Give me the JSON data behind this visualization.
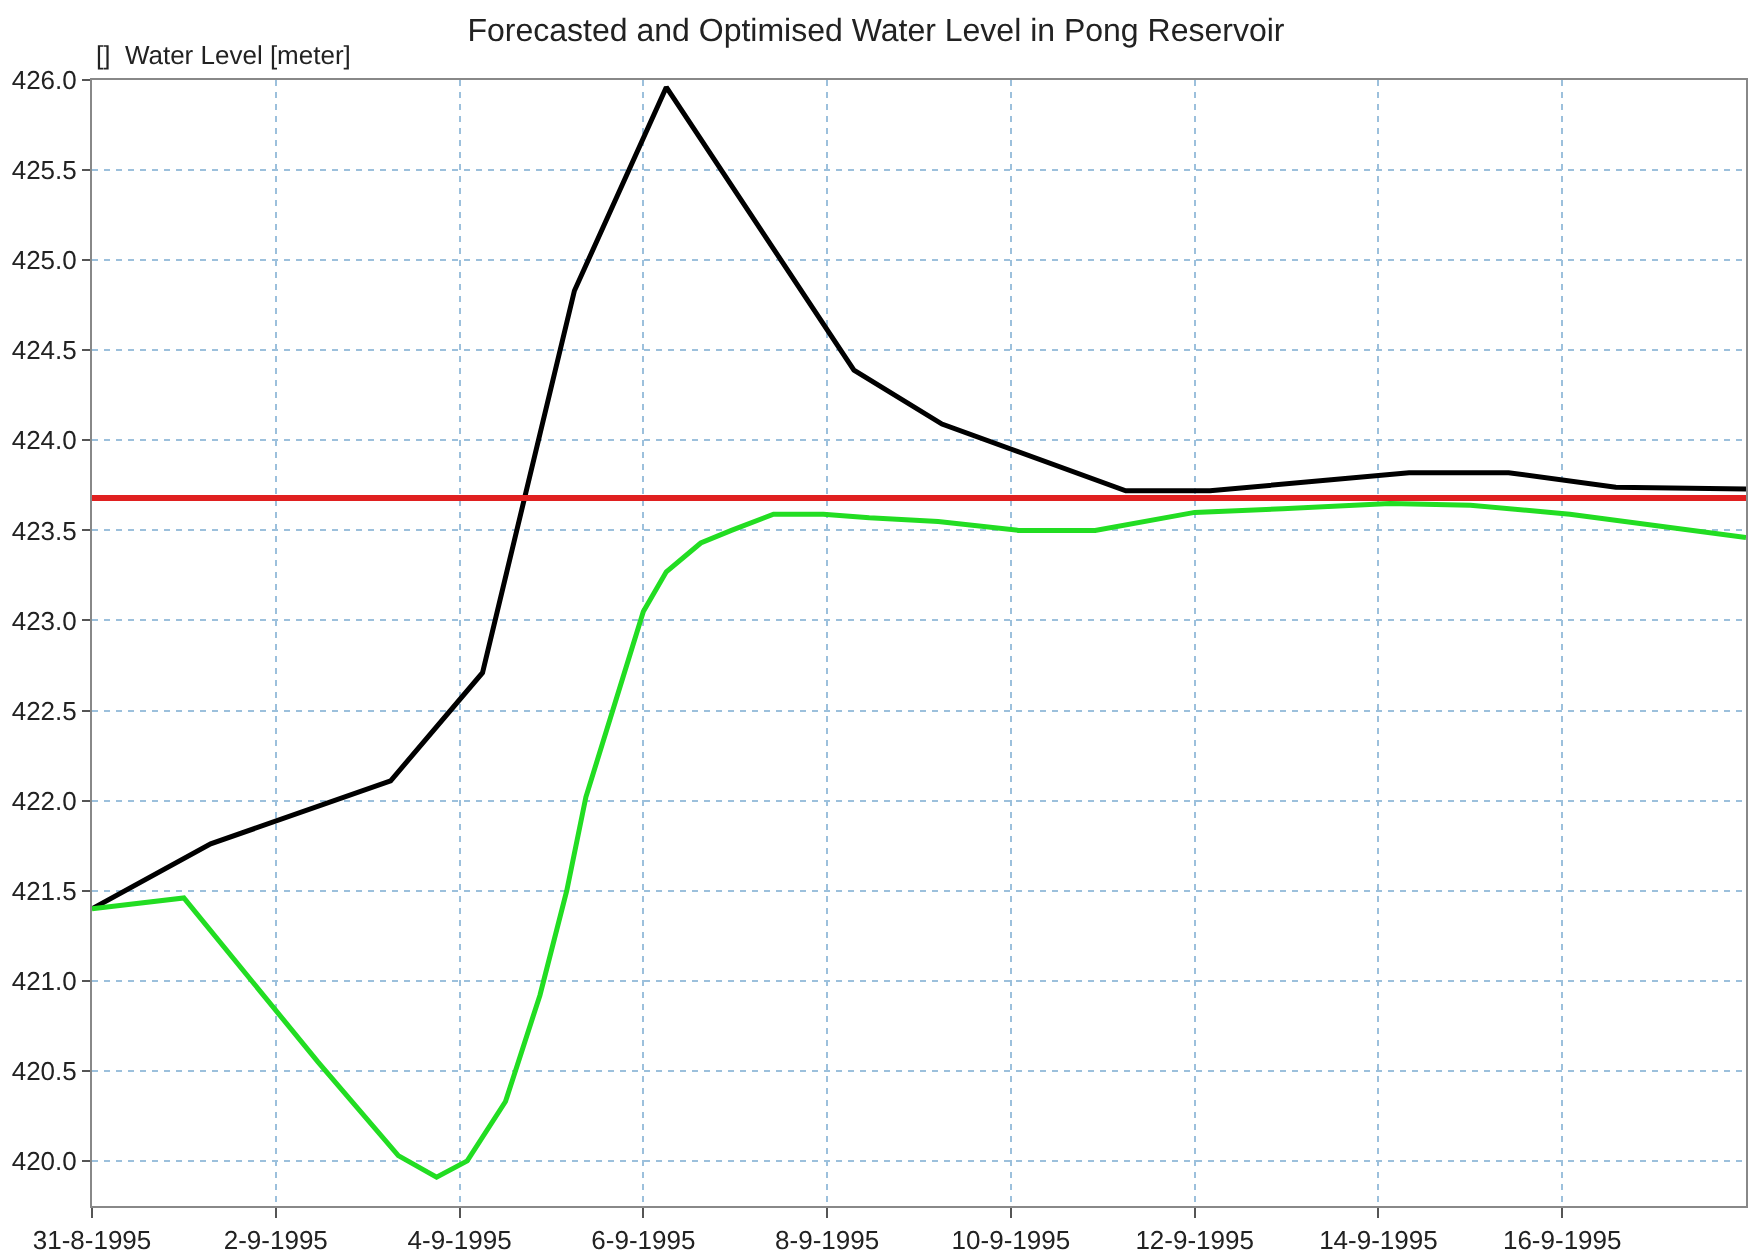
{
  "chart_data": {
    "type": "line",
    "title": "Forecasted and Optimised Water Level in Pong Reservoir",
    "ylabel": "[]  Water Level [meter]",
    "xlim": [
      "1995-08-31",
      "1995-09-18"
    ],
    "xticks": [
      {
        "value": "1995-08-31",
        "label": "31-8-1995"
      },
      {
        "value": "1995-09-02",
        "label": "2-9-1995"
      },
      {
        "value": "1995-09-04",
        "label": "4-9-1995"
      },
      {
        "value": "1995-09-06",
        "label": "6-9-1995"
      },
      {
        "value": "1995-09-08",
        "label": "8-9-1995"
      },
      {
        "value": "1995-09-10",
        "label": "10-9-1995"
      },
      {
        "value": "1995-09-12",
        "label": "12-9-1995"
      },
      {
        "value": "1995-09-14",
        "label": "14-9-1995"
      },
      {
        "value": "1995-09-16",
        "label": "16-9-1995"
      }
    ],
    "ylim": [
      419.75,
      426.0
    ],
    "yticks": [
      {
        "value": 420,
        "label": "420.0"
      },
      {
        "value": 420.5,
        "label": "420.5"
      },
      {
        "value": 421,
        "label": "421.0"
      },
      {
        "value": 421.5,
        "label": "421.5"
      },
      {
        "value": 422,
        "label": "422.0"
      },
      {
        "value": 422.5,
        "label": "422.5"
      },
      {
        "value": 423,
        "label": "423.0"
      },
      {
        "value": 423.5,
        "label": "423.5"
      },
      {
        "value": 424,
        "label": "424.0"
      },
      {
        "value": 424.5,
        "label": "424.5"
      },
      {
        "value": 425,
        "label": "425.0"
      },
      {
        "value": 425.5,
        "label": "425.5"
      },
      {
        "value": 426,
        "label": "426.0"
      }
    ],
    "grid": true,
    "marker": "none",
    "line_style": "solid",
    "ref_lines": [
      {
        "axis": "y",
        "value": 423.68,
        "color": "#e02020",
        "line_style": "solid"
      }
    ],
    "series": [
      {
        "color": "#000000",
        "x": [
          "1995-08-31T00:00",
          "1995-09-01T07:00",
          "1995-09-03T06:00",
          "1995-09-04T06:00",
          "1995-09-05T06:00",
          "1995-09-06T06:00",
          "1995-09-08T07:00",
          "1995-09-09T06:00",
          "1995-09-11T06:00",
          "1995-09-12T04:00",
          "1995-09-14T08:00",
          "1995-09-15T10:00",
          "1995-09-16T14:00",
          "1995-09-18T00:00"
        ],
        "values": [
          421.4,
          421.76,
          422.11,
          422.71,
          424.83,
          425.96,
          424.39,
          424.09,
          423.72,
          423.72,
          423.82,
          423.82,
          423.74,
          423.73
        ]
      },
      {
        "color": "#22dd22",
        "x": [
          "1995-08-31T00:00",
          "1995-09-01T00:00",
          "1995-09-02T11:00",
          "1995-09-03T08:00",
          "1995-09-03T18:00",
          "1995-09-04T02:00",
          "1995-09-04T12:00",
          "1995-09-04T21:00",
          "1995-09-05T04:00",
          "1995-09-05T09:00",
          "1995-09-05T16:00",
          "1995-09-06T00:00",
          "1995-09-06T06:00",
          "1995-09-06T15:00",
          "1995-09-06T23:00",
          "1995-09-07T10:00",
          "1995-09-07T23:00",
          "1995-09-08T11:00",
          "1995-09-09T05:00",
          "1995-09-10T02:00",
          "1995-09-10T22:00",
          "1995-09-12T00:00",
          "1995-09-12T23:00",
          "1995-09-14T03:00",
          "1995-09-15T00:00",
          "1995-09-16T02:00",
          "1995-09-18T00:00"
        ],
        "values": [
          421.4,
          421.46,
          420.55,
          420.03,
          419.91,
          420.0,
          420.33,
          420.92,
          421.5,
          422.02,
          422.5,
          423.05,
          423.27,
          423.43,
          423.5,
          423.59,
          423.59,
          423.57,
          423.55,
          423.5,
          423.5,
          423.6,
          423.62,
          423.65,
          423.64,
          423.59,
          423.46
        ]
      }
    ]
  }
}
